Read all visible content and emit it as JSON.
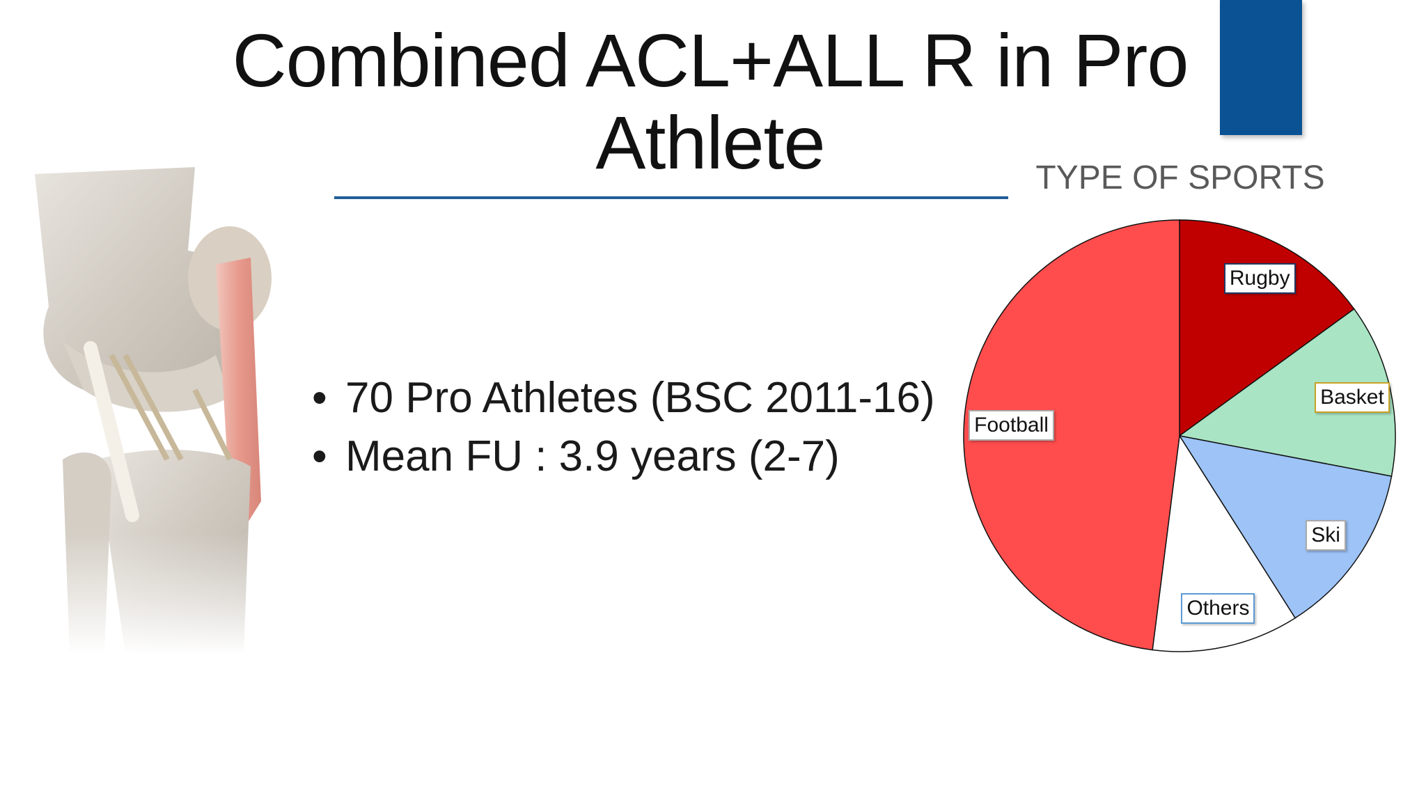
{
  "slide": {
    "title": "Combined ACL+ALL R in Pro Athlete",
    "accent_color": "#0a5293",
    "rule_color": "#1f5f99"
  },
  "bullets": [
    {
      "marker": "•",
      "text": "70 Pro Athletes (BSC 2011-16)"
    },
    {
      "marker": "•",
      "text": "Mean FU : 3.9 years (2-7)"
    }
  ],
  "illustration": {
    "icon": "knee-anatomy-illustration"
  },
  "chart_data": {
    "type": "pie",
    "title": "TYPE OF SPORTS",
    "start_angle_deg": 0,
    "direction": "clockwise",
    "slices": [
      {
        "label": "Rugby",
        "value": 15,
        "color": "#c00000",
        "label_border": "#1f3864"
      },
      {
        "label": "Basket",
        "value": 13,
        "color": "#a9e4c4",
        "label_border": "#c9a227"
      },
      {
        "label": "Ski",
        "value": 13,
        "color": "#9dc3f7",
        "label_border": "#aaaaaa"
      },
      {
        "label": "Others",
        "value": 11,
        "color": "#ffffff",
        "label_border": "#5b9bd5"
      },
      {
        "label": "Football",
        "value": 48,
        "color": "#ff4d4d",
        "label_border": "#aaaaaa"
      }
    ]
  }
}
